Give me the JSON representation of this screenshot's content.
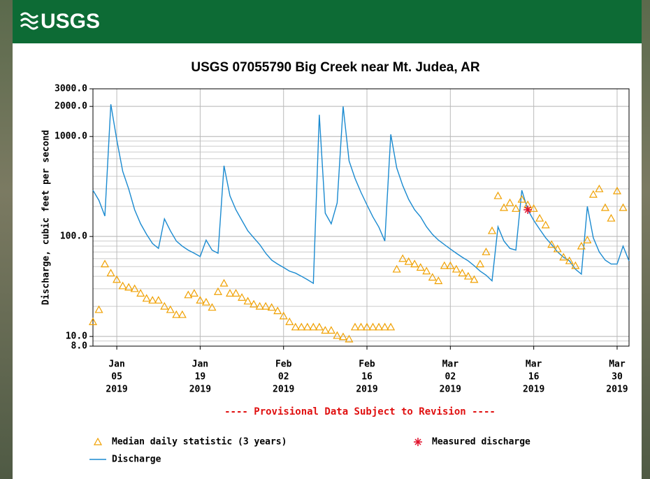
{
  "header": {
    "logo": "USGS"
  },
  "chart_data": {
    "type": "line",
    "title": "USGS 07055790 Big Creek near Mt. Judea, AR",
    "subtitle": "---- Provisional Data Subject to Revision ----",
    "y_label": "Discharge, cubic feet per second",
    "log_y": true,
    "grid": true,
    "ylim": [
      8,
      3000
    ],
    "yticks": [
      {
        "value": 3000,
        "label": "3000.0"
      },
      {
        "value": 2000,
        "label": "2000.0"
      },
      {
        "value": 1000,
        "label": "1000.0"
      },
      {
        "value": 100,
        "label": "100.0"
      },
      {
        "value": 10,
        "label": "10.0"
      },
      {
        "value": 8,
        "label": "8.0"
      }
    ],
    "xlim": [
      "2019-01-01",
      "2019-04-01"
    ],
    "xticks": [
      {
        "value": "2019-01-05",
        "label": [
          "Jan",
          "05",
          "2019"
        ]
      },
      {
        "value": "2019-01-19",
        "label": [
          "Jan",
          "19",
          "2019"
        ]
      },
      {
        "value": "2019-02-02",
        "label": [
          "Feb",
          "02",
          "2019"
        ]
      },
      {
        "value": "2019-02-16",
        "label": [
          "Feb",
          "16",
          "2019"
        ]
      },
      {
        "value": "2019-03-02",
        "label": [
          "Mar",
          "02",
          "2019"
        ]
      },
      {
        "value": "2019-03-16",
        "label": [
          "Mar",
          "16",
          "2019"
        ]
      },
      {
        "value": "2019-03-30",
        "label": [
          "Mar",
          "30",
          "2019"
        ]
      }
    ],
    "x": [
      "2019-01-01",
      "2019-01-02",
      "2019-01-03",
      "2019-01-04",
      "2019-01-05",
      "2019-01-06",
      "2019-01-07",
      "2019-01-08",
      "2019-01-09",
      "2019-01-10",
      "2019-01-11",
      "2019-01-12",
      "2019-01-13",
      "2019-01-14",
      "2019-01-15",
      "2019-01-16",
      "2019-01-17",
      "2019-01-18",
      "2019-01-19",
      "2019-01-20",
      "2019-01-21",
      "2019-01-22",
      "2019-01-23",
      "2019-01-24",
      "2019-01-25",
      "2019-01-26",
      "2019-01-27",
      "2019-01-28",
      "2019-01-29",
      "2019-01-30",
      "2019-01-31",
      "2019-02-01",
      "2019-02-02",
      "2019-02-03",
      "2019-02-04",
      "2019-02-05",
      "2019-02-06",
      "2019-02-07",
      "2019-02-08",
      "2019-02-09",
      "2019-02-10",
      "2019-02-11",
      "2019-02-12",
      "2019-02-13",
      "2019-02-14",
      "2019-02-15",
      "2019-02-16",
      "2019-02-17",
      "2019-02-18",
      "2019-02-19",
      "2019-02-20",
      "2019-02-21",
      "2019-02-22",
      "2019-02-23",
      "2019-02-24",
      "2019-02-25",
      "2019-02-26",
      "2019-02-27",
      "2019-02-28",
      "2019-03-01",
      "2019-03-02",
      "2019-03-03",
      "2019-03-04",
      "2019-03-05",
      "2019-03-06",
      "2019-03-07",
      "2019-03-08",
      "2019-03-09",
      "2019-03-10",
      "2019-03-11",
      "2019-03-12",
      "2019-03-13",
      "2019-03-14",
      "2019-03-15",
      "2019-03-16",
      "2019-03-17",
      "2019-03-18",
      "2019-03-19",
      "2019-03-20",
      "2019-03-21",
      "2019-03-22",
      "2019-03-23",
      "2019-03-24",
      "2019-03-25",
      "2019-03-26",
      "2019-03-27",
      "2019-03-28",
      "2019-03-29",
      "2019-03-30",
      "2019-03-31",
      "2019-04-01"
    ],
    "series": [
      {
        "name": "Median daily statistic (3 years)",
        "color": "#f0a000",
        "marker": "triangle",
        "values": [
          14,
          18.5,
          53,
          43,
          37,
          32,
          31,
          30,
          27,
          24,
          23,
          23,
          20,
          18.5,
          16.5,
          16.5,
          26,
          27,
          23,
          22,
          19.5,
          28,
          34,
          27,
          27,
          24.5,
          22.5,
          21,
          20,
          20,
          19.5,
          18,
          16,
          14,
          12.4,
          12.4,
          12.4,
          12.4,
          12.4,
          11.5,
          11.5,
          10.2,
          9.9,
          9.4,
          12.4,
          12.4,
          12.4,
          12.4,
          12.4,
          12.4,
          12.4,
          47,
          60,
          56,
          53,
          49,
          45,
          39,
          36,
          51,
          51,
          47,
          43,
          40,
          37,
          53,
          70,
          114,
          255,
          194,
          217,
          190,
          235,
          207,
          190,
          152,
          130,
          83,
          75,
          62,
          57,
          51,
          80,
          92,
          263,
          299,
          194,
          152,
          285,
          194,
          null
        ]
      },
      {
        "name": "Measured discharge",
        "color": "#e0102a",
        "marker": "asterisk",
        "x": [
          "2019-03-15"
        ],
        "values": [
          185
        ]
      },
      {
        "name": "Discharge",
        "color": "#1a8ad0",
        "marker": "line",
        "values": [
          290,
          230,
          160,
          2100,
          925,
          448,
          299,
          185,
          134,
          105,
          85,
          76,
          150,
          114,
          90,
          80,
          73,
          68,
          63,
          92,
          73,
          68,
          510,
          255,
          185,
          145,
          114,
          97,
          83,
          68,
          58,
          53,
          49,
          45,
          43,
          40,
          37,
          34,
          1650,
          171,
          134,
          217,
          2000,
          570,
          381,
          276,
          207,
          157,
          124,
          90,
          1050,
          485,
          324,
          235,
          185,
          157,
          125,
          105,
          92,
          83,
          75,
          68,
          62,
          57,
          51,
          45,
          41,
          36,
          125,
          90,
          76,
          73,
          290,
          185,
          145,
          118,
          97,
          83,
          70,
          62,
          57,
          47,
          42,
          200,
          97,
          70,
          58,
          53,
          53,
          80,
          57
        ]
      }
    ]
  }
}
